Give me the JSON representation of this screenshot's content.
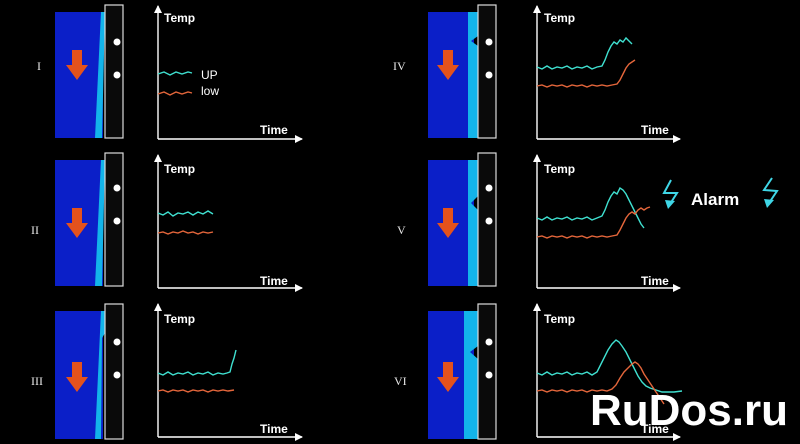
{
  "colors": {
    "background": "#000000",
    "wall_dark_blue": "#0b1fc8",
    "wall_light_blue": "#13b4ea",
    "arrow_orange": "#e4521c",
    "series_up": "#3fe0d0",
    "series_low": "#e4663b",
    "alarm_bolt": "#3fd6e6"
  },
  "panels": [
    {
      "numeral": "I",
      "wall_icon": "furnace-wall-icon",
      "arrow_icon": "down-arrow-icon",
      "y_label": "Temp",
      "x_label": "Time"
    },
    {
      "numeral": "II",
      "wall_icon": "furnace-wall-icon",
      "arrow_icon": "down-arrow-icon",
      "y_label": "Temp",
      "x_label": "Time"
    },
    {
      "numeral": "III",
      "wall_icon": "furnace-wall-icon",
      "arrow_icon": "down-arrow-icon",
      "y_label": "Temp",
      "x_label": "Time"
    },
    {
      "numeral": "IV",
      "wall_icon": "furnace-wall-icon",
      "arrow_icon": "down-arrow-icon",
      "y_label": "Temp",
      "x_label": "Time"
    },
    {
      "numeral": "V",
      "wall_icon": "furnace-wall-icon",
      "arrow_icon": "down-arrow-icon",
      "y_label": "Temp",
      "x_label": "Time"
    },
    {
      "numeral": "VI",
      "wall_icon": "furnace-wall-icon",
      "arrow_icon": "down-arrow-icon",
      "y_label": "Temp",
      "x_label": "Time"
    }
  ],
  "legend": {
    "up": "UP",
    "low": "low"
  },
  "alarm": {
    "text": "Alarm",
    "icon": "lightning-bolt-icon"
  },
  "watermark": "RuDos.ru"
}
